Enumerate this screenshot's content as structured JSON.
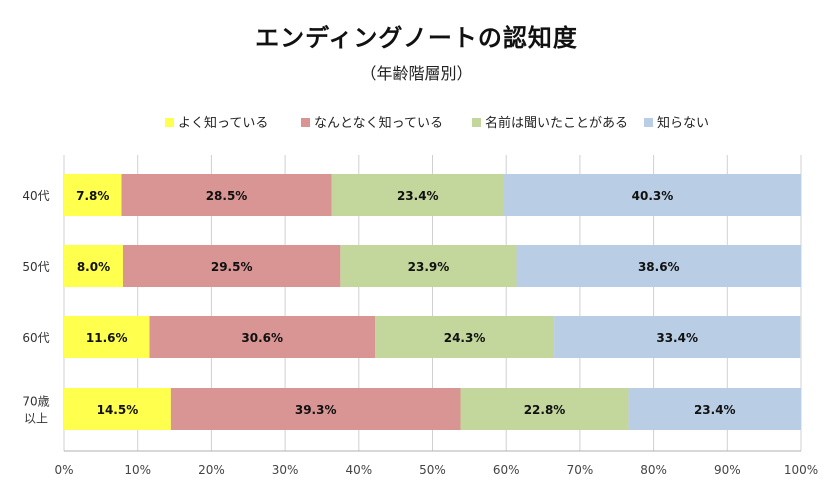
{
  "chart_data": {
    "type": "bar",
    "orientation": "horizontal",
    "stacked": true,
    "title": "エンディングノートの認知度",
    "subtitle": "（年齢階層別）",
    "categories": [
      "40代",
      "50代",
      "60代",
      "70歳\n以上"
    ],
    "series": [
      {
        "name": "よく知っている",
        "color": "#ffff4d",
        "values": [
          7.8,
          8.0,
          11.6,
          14.5
        ]
      },
      {
        "name": "なんとなく知っている",
        "color": "#d99594",
        "values": [
          28.5,
          29.5,
          30.6,
          39.3
        ]
      },
      {
        "name": "名前は聞いたことがある",
        "color": "#c3d69b",
        "values": [
          23.4,
          23.9,
          24.3,
          22.8
        ]
      },
      {
        "name": "知らない",
        "color": "#b9cde5",
        "values": [
          40.3,
          38.6,
          33.4,
          23.4
        ]
      }
    ],
    "value_suffix": "%",
    "xlim": [
      0,
      100
    ],
    "xticks": [
      "0%",
      "10%",
      "20%",
      "30%",
      "40%",
      "50%",
      "60%",
      "70%",
      "80%",
      "90%",
      "100%"
    ],
    "grid": true,
    "legend_position": "top"
  }
}
